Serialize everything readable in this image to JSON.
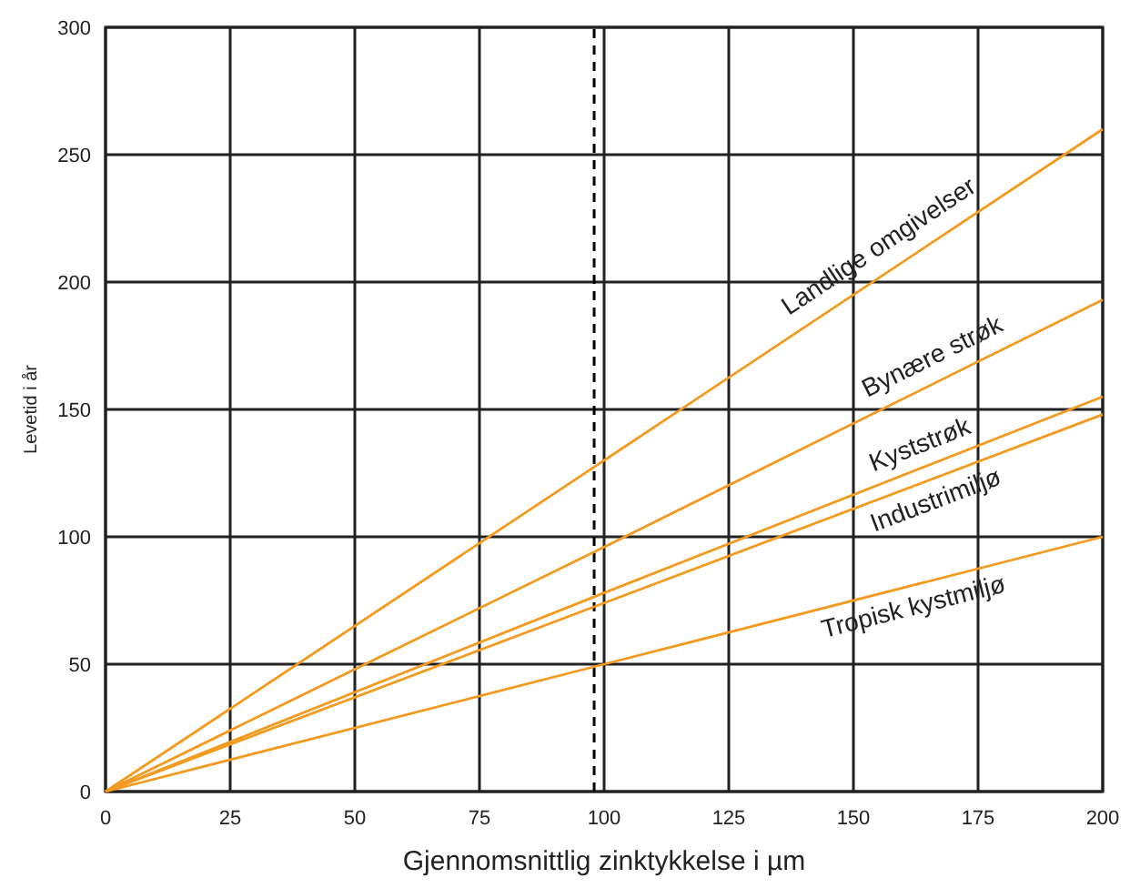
{
  "chart_data": {
    "type": "line",
    "xlabel": "Gjennomsnittlig zinktykkelse i µm",
    "ylabel": "Levetid i år",
    "xlim": [
      0,
      200
    ],
    "ylim": [
      0,
      300
    ],
    "xticks": [
      0,
      25,
      50,
      75,
      100,
      125,
      150,
      175,
      200
    ],
    "yticks": [
      0,
      50,
      100,
      150,
      200,
      250,
      300
    ],
    "grid": true,
    "x": [
      0,
      100,
      200
    ],
    "series": [
      {
        "name": "Landlige omgivelser",
        "color": "#f39a1f",
        "values": [
          0,
          130,
          260
        ]
      },
      {
        "name": "Bynære strøk",
        "color": "#f39a1f",
        "values": [
          0,
          96,
          193
        ]
      },
      {
        "name": "Kyststrøk",
        "color": "#f39a1f",
        "values": [
          0,
          78,
          155
        ]
      },
      {
        "name": "Industrimiljø",
        "color": "#f39a1f",
        "values": [
          0,
          74,
          148
        ]
      },
      {
        "name": "Tropisk kystmiljø",
        "color": "#f39a1f",
        "values": [
          0,
          50,
          100
        ]
      }
    ],
    "ref_lines": [
      {
        "axis": "x",
        "value": 98,
        "line_style": "dashed",
        "color": "#000000"
      }
    ]
  }
}
